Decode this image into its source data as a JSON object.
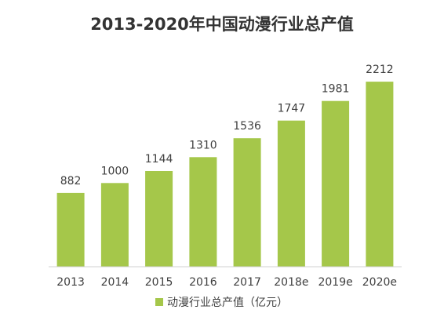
{
  "chart_data": {
    "type": "bar",
    "title": "2013-2020年中国动漫行业总产值",
    "categories": [
      "2013",
      "2014",
      "2015",
      "2016",
      "2017",
      "2018e",
      "2019e",
      "2020e"
    ],
    "series": [
      {
        "name": "动漫行业总产值（亿元）",
        "values": [
          882,
          1000,
          1144,
          1310,
          1536,
          1747,
          1981,
          2212
        ]
      }
    ],
    "value_labels": [
      "882",
      "1000",
      "1144",
      "1310",
      "1536",
      "1747",
      "1981",
      "2212"
    ],
    "ylim": [
      0,
      2400
    ],
    "grid": false,
    "legend": "bottom",
    "bar_color": "#a5c74a",
    "axis_color": "#d0d0d0"
  }
}
